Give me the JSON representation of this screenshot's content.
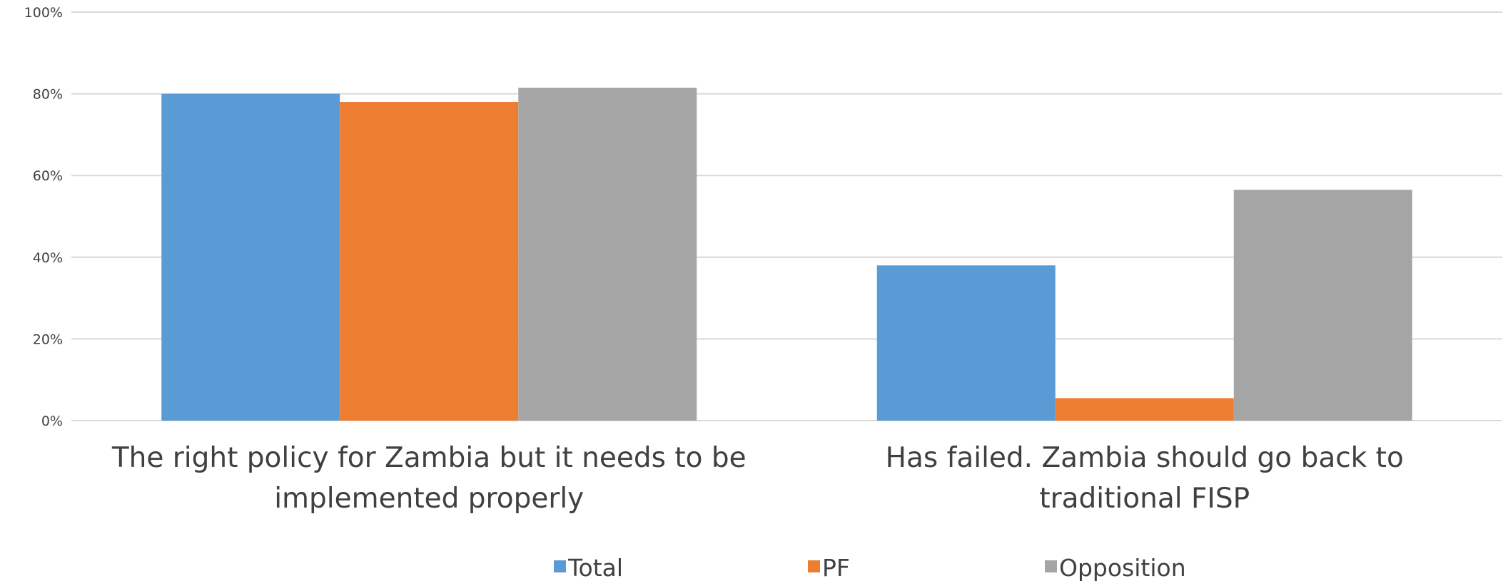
{
  "chart_data": {
    "type": "bar",
    "categories": [
      [
        "The right policy for Zambia but it needs to be",
        "implemented properly"
      ],
      [
        "Has failed. Zambia should go back to",
        "traditional FISP"
      ]
    ],
    "series": [
      {
        "name": "Total",
        "color": "#5B9BD5",
        "values": [
          80,
          38
        ]
      },
      {
        "name": "PF",
        "color": "#ED7D31",
        "values": [
          78,
          5.5
        ]
      },
      {
        "name": "Opposition",
        "color": "#A5A5A5",
        "values": [
          81.5,
          56.5
        ]
      }
    ],
    "yticks": [
      "0%",
      "20%",
      "40%",
      "60%",
      "80%",
      "100%"
    ],
    "ylim": [
      0,
      100
    ],
    "grid": true,
    "legend": "bottom"
  }
}
